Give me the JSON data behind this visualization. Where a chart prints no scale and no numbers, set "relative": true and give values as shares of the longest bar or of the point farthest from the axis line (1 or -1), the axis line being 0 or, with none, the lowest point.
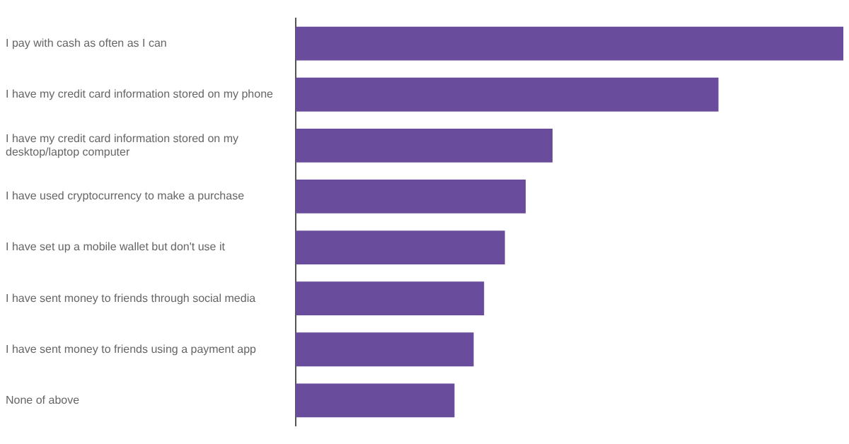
{
  "chart_data": {
    "type": "bar",
    "orientation": "horizontal",
    "relative": true,
    "legend": false,
    "categories": [
      "I pay with cash as often as I can",
      "I have my credit card information stored on my phone",
      "I have my credit card information stored on my desktop/laptop computer",
      "I have used cryptocurrency to make a purchase",
      "I have set up a mobile wallet but don't use it",
      "I have sent money to friends through social media",
      "I have sent money to friends using a payment app",
      "None of above"
    ],
    "values": [
      1,
      0.772,
      0.469,
      0.42,
      0.382,
      0.344,
      0.325,
      0.29
    ],
    "color": "#6a4c9c"
  }
}
